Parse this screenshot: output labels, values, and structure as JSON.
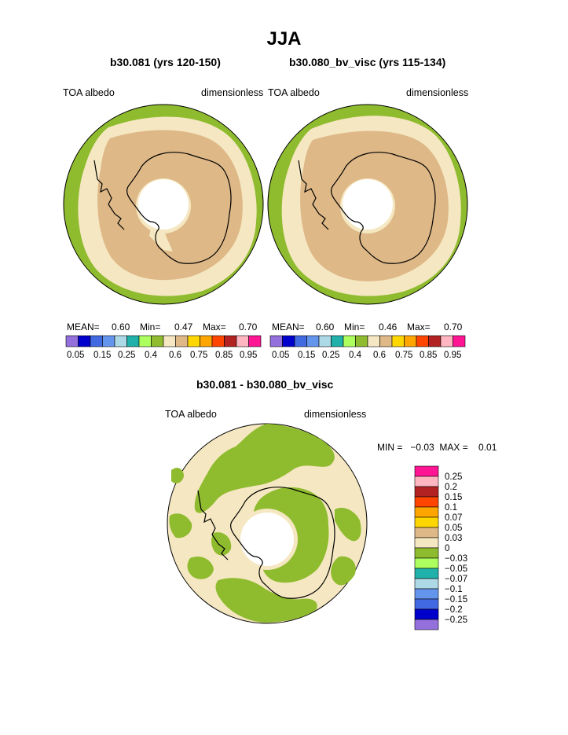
{
  "page": {
    "title": "JJA",
    "diff_title": "b30.081 - b30.080_bv_visc"
  },
  "colors": {
    "ocean_green": "#8FBB2E",
    "light_band": "#F5E7C1",
    "tan": "#DEB887",
    "coast": "#000000",
    "palette": [
      "#9370DB",
      "#0000CD",
      "#4169E1",
      "#6495ED",
      "#ADD8E6",
      "#20B2AA",
      "#ADFF5F",
      "#8FBB2E",
      "#F5E7C1",
      "#DEB887",
      "#FFD700",
      "#FFA500",
      "#FF4500",
      "#B22222",
      "#FFB6C1",
      "#FF1493"
    ]
  },
  "panels": [
    {
      "subtitle": "b30.081 (yrs 120-150)",
      "left_label": "TOA albedo",
      "right_label": "dimensionless",
      "mean_label": "MEAN=",
      "mean_value": "0.60",
      "min_label": "Min=",
      "min_value": "0.47",
      "max_label": "Max=",
      "max_value": "0.70",
      "ticks": [
        "0.05",
        "0.15",
        "0.25",
        "0.4",
        "0.6",
        "0.75",
        "0.85",
        "0.95"
      ]
    },
    {
      "subtitle": "b30.080_bv_visc (yrs 115-134)",
      "left_label": "TOA albedo",
      "right_label": "dimensionless",
      "mean_label": "MEAN=",
      "mean_value": "0.60",
      "min_label": "Min=",
      "min_value": "0.46",
      "max_label": "Max=",
      "max_value": "0.70",
      "ticks": [
        "0.05",
        "0.15",
        "0.25",
        "0.4",
        "0.6",
        "0.75",
        "0.85",
        "0.95"
      ]
    }
  ],
  "diff": {
    "left_label": "TOA albedo",
    "right_label": "dimensionless",
    "minmax": "MIN =   −0.03  MAX =    0.01",
    "legend_labels": [
      "0.25",
      "0.2",
      "0.15",
      "0.1",
      "0.07",
      "0.05",
      "0.03",
      "0",
      "−0.03",
      "−0.05",
      "−0.07",
      "−0.1",
      "−0.15",
      "−0.2",
      "−0.25"
    ],
    "legend_colors": [
      "#FF1493",
      "#FFB6C1",
      "#B22222",
      "#FF4500",
      "#FFA500",
      "#FFD700",
      "#DEB887",
      "#F5E7C1",
      "#8FBB2E",
      "#ADFF5F",
      "#20B2AA",
      "#ADD8E6",
      "#6495ED",
      "#4169E1",
      "#0000CD",
      "#9370DB"
    ]
  }
}
